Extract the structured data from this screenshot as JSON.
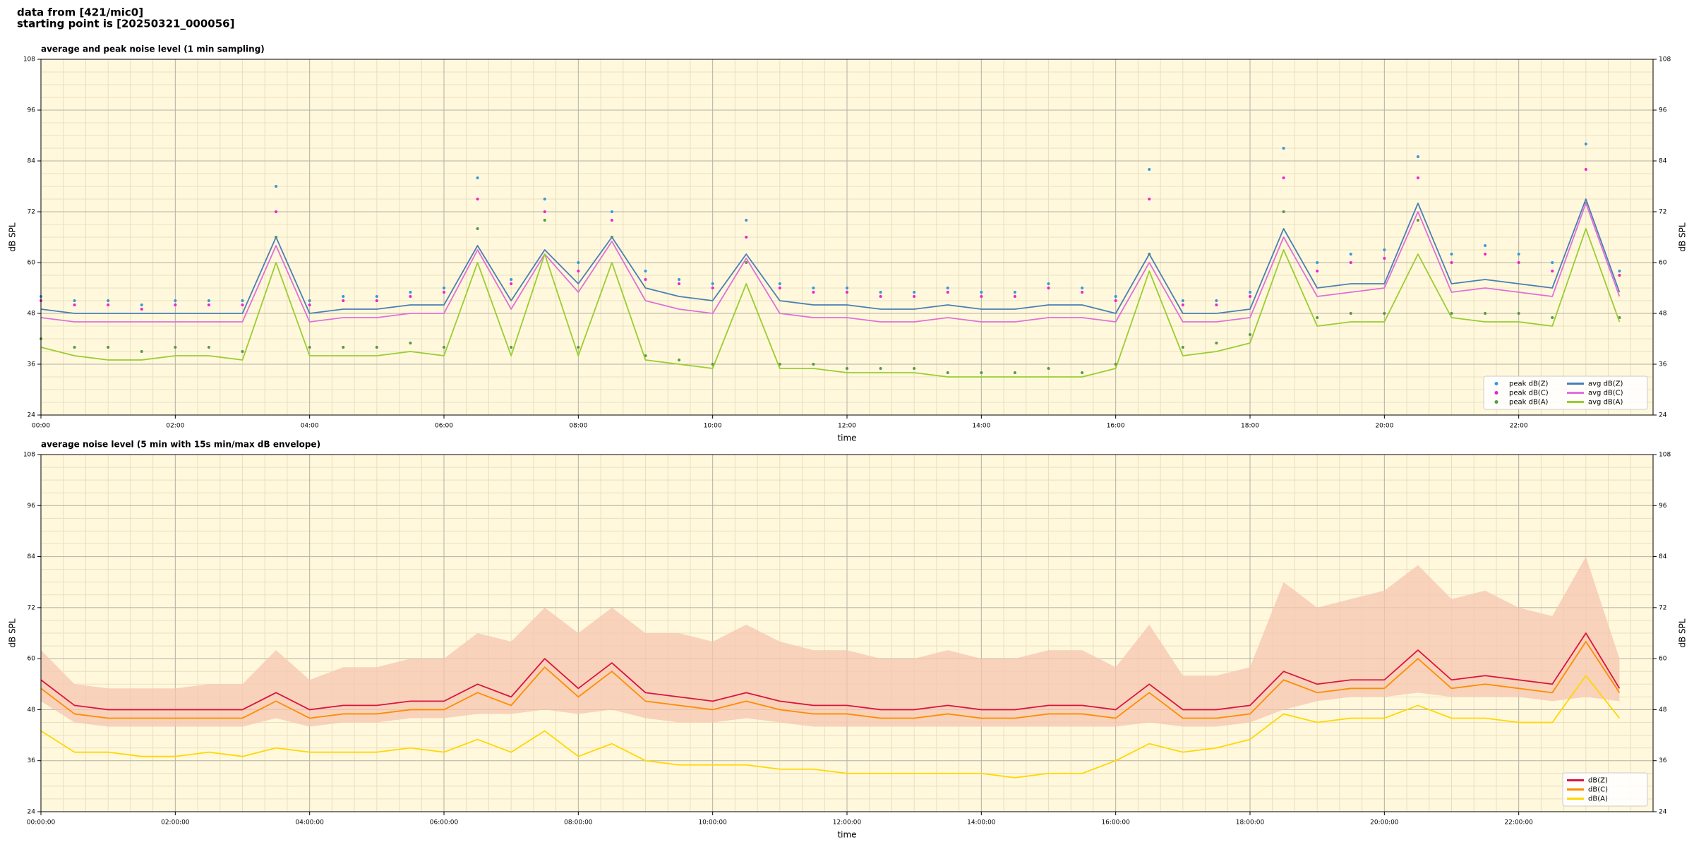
{
  "header": {
    "lines": [
      "data from [421/mic0]",
      "starting point is [20250321_000056]"
    ]
  },
  "chart_data": [
    {
      "type": "line",
      "title": "average and peak noise level (1 min sampling)",
      "xlabel": "time",
      "ylabel": "dB SPL",
      "xlim": [
        0,
        24
      ],
      "ylim": [
        24,
        108
      ],
      "yticks": [
        24,
        36,
        48,
        60,
        72,
        84,
        96,
        108
      ],
      "xticks": [
        {
          "value": 0,
          "label": "00:00"
        },
        {
          "value": 2,
          "label": "02:00"
        },
        {
          "value": 4,
          "label": "04:00"
        },
        {
          "value": 6,
          "label": "06:00"
        },
        {
          "value": 8,
          "label": "08:00"
        },
        {
          "value": 10,
          "label": "10:00"
        },
        {
          "value": 12,
          "label": "12:00"
        },
        {
          "value": 14,
          "label": "14:00"
        },
        {
          "value": 16,
          "label": "16:00"
        },
        {
          "value": 18,
          "label": "18:00"
        },
        {
          "value": 20,
          "label": "20:00"
        },
        {
          "value": 22,
          "label": "22:00"
        }
      ],
      "grid": true,
      "legend": "lower right",
      "legend_columns": 2,
      "background": "#fff8dc",
      "x": [
        0,
        0.5,
        1,
        1.5,
        2,
        2.5,
        3,
        3.5,
        4,
        4.5,
        5,
        5.5,
        6,
        6.5,
        7,
        7.5,
        8,
        8.5,
        9,
        9.5,
        10,
        10.5,
        11,
        11.5,
        12,
        12.5,
        13,
        13.5,
        14,
        14.5,
        15,
        15.5,
        16,
        16.5,
        17,
        17.5,
        18,
        18.5,
        19,
        19.5,
        20,
        20.5,
        21,
        21.5,
        22,
        22.5,
        23,
        23.5
      ],
      "series": [
        {
          "name": "peak dB(Z)",
          "style": "dots",
          "color": "#3399dd",
          "values": [
            52,
            51,
            51,
            50,
            51,
            51,
            51,
            78,
            51,
            52,
            52,
            53,
            54,
            80,
            56,
            75,
            60,
            72,
            58,
            56,
            55,
            70,
            55,
            54,
            54,
            53,
            53,
            54,
            53,
            53,
            55,
            54,
            52,
            82,
            51,
            51,
            53,
            87,
            60,
            62,
            63,
            85,
            62,
            64,
            62,
            60,
            88,
            58
          ]
        },
        {
          "name": "peak dB(C)",
          "style": "dots",
          "color": "#ee22cc",
          "values": [
            51,
            50,
            50,
            49,
            50,
            50,
            50,
            72,
            50,
            51,
            51,
            52,
            53,
            75,
            55,
            72,
            58,
            70,
            56,
            55,
            54,
            66,
            54,
            53,
            53,
            52,
            52,
            53,
            52,
            52,
            54,
            53,
            51,
            75,
            50,
            50,
            52,
            80,
            58,
            60,
            61,
            80,
            60,
            62,
            60,
            58,
            82,
            57
          ]
        },
        {
          "name": "peak dB(A)",
          "style": "dots",
          "color": "#559944",
          "values": [
            42,
            40,
            40,
            39,
            40,
            40,
            39,
            66,
            40,
            40,
            40,
            41,
            40,
            68,
            40,
            70,
            40,
            66,
            38,
            37,
            36,
            60,
            36,
            36,
            35,
            35,
            35,
            34,
            34,
            34,
            35,
            34,
            36,
            62,
            40,
            41,
            43,
            72,
            47,
            48,
            48,
            70,
            48,
            48,
            48,
            47,
            74,
            47
          ]
        },
        {
          "name": "avg dB(Z)",
          "style": "line",
          "color": "#4a7fb5",
          "values": [
            49,
            48,
            48,
            48,
            48,
            48,
            48,
            66,
            48,
            49,
            49,
            50,
            50,
            64,
            51,
            63,
            55,
            66,
            54,
            52,
            51,
            62,
            51,
            50,
            50,
            49,
            49,
            50,
            49,
            49,
            50,
            50,
            48,
            62,
            48,
            48,
            49,
            68,
            54,
            55,
            55,
            74,
            55,
            56,
            55,
            54,
            75,
            53
          ]
        },
        {
          "name": "avg dB(C)",
          "style": "line",
          "color": "#e070d8",
          "values": [
            47,
            46,
            46,
            46,
            46,
            46,
            46,
            64,
            46,
            47,
            47,
            48,
            48,
            63,
            49,
            62,
            53,
            65,
            51,
            49,
            48,
            61,
            48,
            47,
            47,
            46,
            46,
            47,
            46,
            46,
            47,
            47,
            46,
            60,
            46,
            46,
            47,
            66,
            52,
            53,
            54,
            72,
            53,
            54,
            53,
            52,
            74,
            52
          ]
        },
        {
          "name": "avg dB(A)",
          "style": "line",
          "color": "#9acd32",
          "values": [
            40,
            38,
            37,
            37,
            38,
            38,
            37,
            60,
            38,
            38,
            38,
            39,
            38,
            60,
            38,
            62,
            38,
            60,
            37,
            36,
            35,
            55,
            35,
            35,
            34,
            34,
            34,
            33,
            33,
            33,
            33,
            33,
            35,
            58,
            38,
            39,
            41,
            63,
            45,
            46,
            46,
            62,
            47,
            46,
            46,
            45,
            68,
            46
          ]
        }
      ]
    },
    {
      "type": "line",
      "title": "average noise level (5 min with 15s min/max dB envelope)",
      "xlabel": "time",
      "ylabel": "dB SPL",
      "xlim": [
        0,
        24
      ],
      "ylim": [
        24,
        108
      ],
      "yticks": [
        24,
        36,
        48,
        60,
        72,
        84,
        96,
        108
      ],
      "xticks": [
        {
          "value": 0,
          "label": "00:00:00"
        },
        {
          "value": 2,
          "label": "02:00:00"
        },
        {
          "value": 4,
          "label": "04:00:00"
        },
        {
          "value": 6,
          "label": "06:00:00"
        },
        {
          "value": 8,
          "label": "08:00:00"
        },
        {
          "value": 10,
          "label": "10:00:00"
        },
        {
          "value": 12,
          "label": "12:00:00"
        },
        {
          "value": 14,
          "label": "14:00:00"
        },
        {
          "value": 16,
          "label": "16:00:00"
        },
        {
          "value": 18,
          "label": "18:00:00"
        },
        {
          "value": 20,
          "label": "20:00:00"
        },
        {
          "value": 22,
          "label": "22:00:00"
        }
      ],
      "grid": true,
      "legend": "lower right",
      "legend_columns": 1,
      "background": "#fff8dc",
      "x": [
        0,
        0.5,
        1,
        1.5,
        2,
        2.5,
        3,
        3.5,
        4,
        4.5,
        5,
        5.5,
        6,
        6.5,
        7,
        7.5,
        8,
        8.5,
        9,
        9.5,
        10,
        10.5,
        11,
        11.5,
        12,
        12.5,
        13,
        13.5,
        14,
        14.5,
        15,
        15.5,
        16,
        16.5,
        17,
        17.5,
        18,
        18.5,
        19,
        19.5,
        20,
        20.5,
        21,
        21.5,
        22,
        22.5,
        23,
        23.5
      ],
      "envelope": {
        "color": "#f5c6b0",
        "upper": [
          62,
          54,
          53,
          53,
          53,
          54,
          54,
          62,
          55,
          58,
          58,
          60,
          60,
          66,
          64,
          72,
          66,
          72,
          66,
          66,
          64,
          68,
          64,
          62,
          62,
          60,
          60,
          62,
          60,
          60,
          62,
          62,
          58,
          68,
          56,
          56,
          58,
          78,
          72,
          74,
          76,
          82,
          74,
          76,
          72,
          70,
          84,
          60
        ],
        "lower": [
          50,
          45,
          44,
          44,
          44,
          44,
          44,
          46,
          44,
          45,
          45,
          46,
          46,
          47,
          47,
          48,
          47,
          48,
          46,
          45,
          45,
          46,
          45,
          44,
          44,
          44,
          44,
          44,
          44,
          44,
          44,
          44,
          44,
          45,
          44,
          44,
          45,
          48,
          50,
          51,
          51,
          52,
          51,
          51,
          51,
          50,
          51,
          50
        ]
      },
      "series": [
        {
          "name": "dB(Z)",
          "style": "line",
          "color": "#dc143c",
          "values": [
            55,
            49,
            48,
            48,
            48,
            48,
            48,
            52,
            48,
            49,
            49,
            50,
            50,
            54,
            51,
            60,
            53,
            59,
            52,
            51,
            50,
            52,
            50,
            49,
            49,
            48,
            48,
            49,
            48,
            48,
            49,
            49,
            48,
            54,
            48,
            48,
            49,
            57,
            54,
            55,
            55,
            62,
            55,
            56,
            55,
            54,
            66,
            53
          ]
        },
        {
          "name": "dB(C)",
          "style": "line",
          "color": "#ff8c00",
          "values": [
            53,
            47,
            46,
            46,
            46,
            46,
            46,
            50,
            46,
            47,
            47,
            48,
            48,
            52,
            49,
            58,
            51,
            57,
            50,
            49,
            48,
            50,
            48,
            47,
            47,
            46,
            46,
            47,
            46,
            46,
            47,
            47,
            46,
            52,
            46,
            46,
            47,
            55,
            52,
            53,
            53,
            60,
            53,
            54,
            53,
            52,
            64,
            52
          ]
        },
        {
          "name": "dB(A)",
          "style": "line",
          "color": "#ffd700",
          "values": [
            43,
            38,
            38,
            37,
            37,
            38,
            37,
            39,
            38,
            38,
            38,
            39,
            38,
            41,
            38,
            43,
            37,
            40,
            36,
            35,
            35,
            35,
            34,
            34,
            33,
            33,
            33,
            33,
            33,
            32,
            33,
            33,
            36,
            40,
            38,
            39,
            41,
            47,
            45,
            46,
            46,
            49,
            46,
            46,
            45,
            45,
            56,
            46
          ]
        }
      ]
    }
  ]
}
